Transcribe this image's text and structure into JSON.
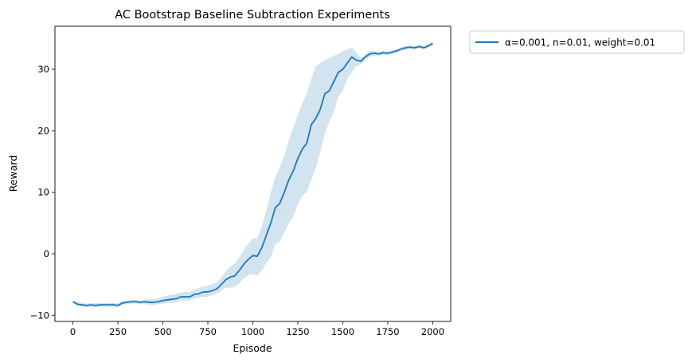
{
  "chart_data": {
    "type": "line",
    "title": "AC Bootstrap Baseline Subtraction Experiments",
    "xlabel": "Episode",
    "ylabel": "Reward",
    "xlim": [
      -100,
      2100
    ],
    "ylim": [
      -11,
      37
    ],
    "xticks": [
      0,
      250,
      500,
      750,
      1000,
      1250,
      1500,
      1750,
      2000
    ],
    "yticks": [
      -10,
      0,
      10,
      20,
      30
    ],
    "grid": false,
    "legend_position": "outside-top-right",
    "series": [
      {
        "name": "α=0.001, n=0.01, weight=0.01",
        "color": "#1f77b4",
        "band_color": "#1f77b4",
        "x": [
          0,
          25,
          50,
          75,
          100,
          125,
          150,
          175,
          200,
          225,
          250,
          275,
          300,
          325,
          350,
          375,
          400,
          425,
          450,
          475,
          500,
          525,
          550,
          575,
          600,
          625,
          650,
          675,
          700,
          725,
          750,
          775,
          800,
          825,
          850,
          875,
          900,
          925,
          950,
          975,
          1000,
          1025,
          1050,
          1075,
          1100,
          1125,
          1150,
          1175,
          1200,
          1225,
          1250,
          1275,
          1300,
          1325,
          1350,
          1375,
          1400,
          1425,
          1450,
          1475,
          1500,
          1525,
          1550,
          1575,
          1600,
          1625,
          1650,
          1675,
          1700,
          1725,
          1750,
          1775,
          1800,
          1825,
          1850,
          1875,
          1900,
          1925,
          1950,
          1975,
          2000
        ],
        "mean": [
          -7.8,
          -8.2,
          -8.3,
          -8.4,
          -8.3,
          -8.4,
          -8.3,
          -8.3,
          -8.3,
          -8.3,
          -8.4,
          -8.0,
          -7.9,
          -7.8,
          -7.8,
          -7.9,
          -7.8,
          -7.9,
          -7.9,
          -7.8,
          -7.6,
          -7.5,
          -7.4,
          -7.3,
          -7.0,
          -7.0,
          -7.0,
          -6.6,
          -6.5,
          -6.2,
          -6.2,
          -6.0,
          -5.7,
          -5.0,
          -4.2,
          -3.8,
          -3.6,
          -2.7,
          -1.7,
          -0.9,
          -0.3,
          -0.4,
          1.0,
          3.0,
          5.0,
          7.5,
          8.2,
          10.0,
          12.0,
          13.5,
          15.5,
          17.0,
          18.0,
          21.0,
          22.0,
          23.5,
          26.0,
          26.5,
          28.0,
          29.5,
          30.0,
          31.0,
          32.0,
          31.5,
          31.3,
          32.0,
          32.5,
          32.6,
          32.5,
          32.7,
          32.6,
          32.8,
          33.0,
          33.3,
          33.5,
          33.6,
          33.5,
          33.7,
          33.5,
          33.8,
          34.2
        ],
        "lower": [
          -8.0,
          -8.5,
          -8.6,
          -8.7,
          -8.6,
          -8.7,
          -8.6,
          -8.6,
          -8.6,
          -8.6,
          -8.7,
          -8.3,
          -8.2,
          -8.1,
          -8.1,
          -8.2,
          -8.2,
          -8.3,
          -8.3,
          -8.2,
          -8.1,
          -8.0,
          -8.0,
          -7.9,
          -7.6,
          -7.6,
          -7.6,
          -7.3,
          -7.2,
          -7.0,
          -7.0,
          -6.8,
          -6.5,
          -6.0,
          -5.5,
          -5.5,
          -5.4,
          -4.8,
          -4.0,
          -3.5,
          -3.3,
          -3.5,
          -2.7,
          -1.5,
          -0.5,
          1.5,
          2.0,
          3.5,
          5.0,
          6.0,
          8.0,
          9.5,
          10.0,
          12.0,
          14.0,
          16.5,
          19.5,
          21.5,
          23.0,
          25.5,
          26.5,
          28.5,
          29.5,
          30.5,
          30.8,
          31.5,
          32.0,
          32.2,
          32.2,
          32.4,
          32.3,
          32.5,
          32.7,
          33.0,
          33.2,
          33.3,
          33.2,
          33.4,
          33.2,
          33.5,
          33.9
        ],
        "upper": [
          -7.6,
          -7.9,
          -8.0,
          -8.1,
          -8.0,
          -8.1,
          -8.0,
          -8.0,
          -8.0,
          -8.0,
          -8.1,
          -7.7,
          -7.6,
          -7.5,
          -7.5,
          -7.6,
          -7.4,
          -7.4,
          -7.4,
          -7.3,
          -7.0,
          -6.8,
          -6.6,
          -6.5,
          -6.3,
          -6.2,
          -6.2,
          -5.8,
          -5.6,
          -5.3,
          -5.2,
          -5.0,
          -4.6,
          -3.8,
          -2.8,
          -2.0,
          -1.6,
          -0.5,
          0.6,
          1.6,
          2.5,
          2.5,
          4.5,
          7.0,
          10.0,
          12.5,
          14.0,
          16.0,
          18.5,
          20.5,
          22.5,
          24.5,
          26.0,
          28.5,
          30.5,
          31.0,
          31.5,
          31.8,
          32.2,
          32.5,
          33.0,
          33.2,
          33.5,
          32.8,
          31.8,
          32.5,
          33.0,
          33.0,
          32.8,
          33.0,
          32.9,
          33.1,
          33.3,
          33.6,
          33.8,
          33.9,
          33.8,
          34.0,
          33.8,
          34.1,
          34.5
        ]
      }
    ]
  }
}
